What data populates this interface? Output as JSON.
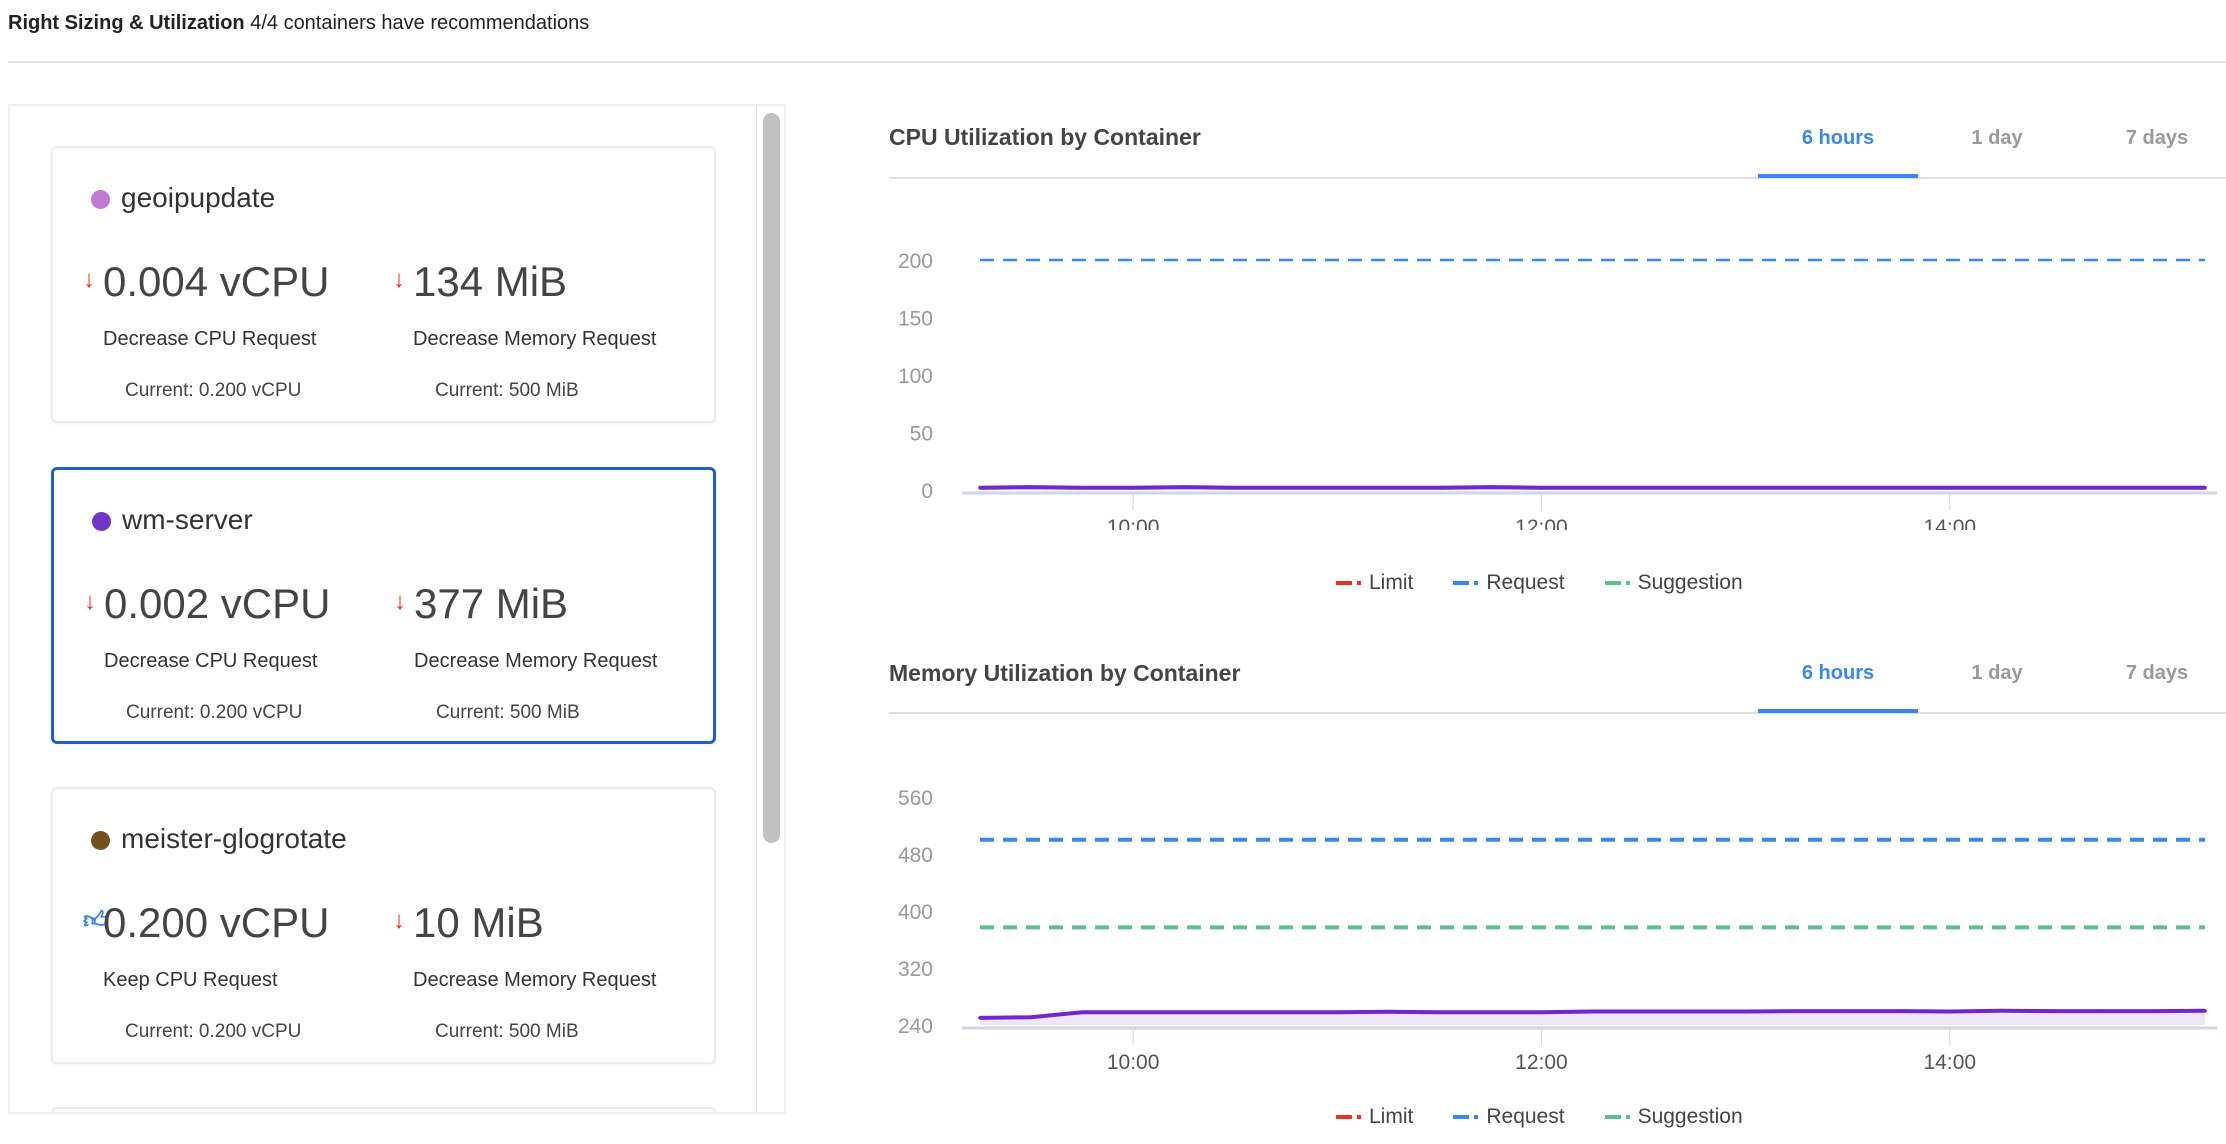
{
  "header": {
    "title": "Right Sizing & Utilization",
    "subtitle": "4/4 containers have recommendations"
  },
  "containers": [
    {
      "name": "geoipupdate",
      "color": "#c278d4",
      "cpu": {
        "icon": "arrow-down-icon",
        "value": "0.004 vCPU",
        "label": "Decrease CPU Request",
        "current": "Current: 0.200 vCPU"
      },
      "mem": {
        "icon": "arrow-down-icon",
        "value": "134 MiB",
        "label": "Decrease Memory Request",
        "current": "Current: 500 MiB"
      }
    },
    {
      "name": "wm-server",
      "color": "#7034c8",
      "selected": true,
      "cpu": {
        "icon": "arrow-down-icon",
        "value": "0.002 vCPU",
        "label": "Decrease CPU Request",
        "current": "Current: 0.200 vCPU"
      },
      "mem": {
        "icon": "arrow-down-icon",
        "value": "377 MiB",
        "label": "Decrease Memory Request",
        "current": "Current: 500 MiB"
      }
    },
    {
      "name": "meister-glogrotate",
      "color": "#74501f",
      "cpu": {
        "icon": "thumbs-up-icon",
        "value": "0.200 vCPU",
        "label": "Keep CPU Request",
        "current": "Current: 0.200 vCPU"
      },
      "mem": {
        "icon": "arrow-down-icon",
        "value": "10 MiB",
        "label": "Decrease Memory Request",
        "current": "Current: 500 MiB"
      }
    }
  ],
  "colors": {
    "accent": "#3b87f0",
    "limit": "#e8321f",
    "request": "#3b87f0",
    "suggestion": "#5cc08b",
    "usage": "#7026d0",
    "decrease": "#e8321f"
  },
  "tabs": [
    "6 hours",
    "1 day",
    "7 days"
  ],
  "active_tab": "6 hours",
  "chart_data": [
    {
      "type": "line",
      "title": "CPU Utilization by Container",
      "x": [
        "09:15",
        "09:30",
        "09:45",
        "10:00",
        "10:15",
        "10:30",
        "10:45",
        "11:00",
        "11:15",
        "11:30",
        "11:45",
        "12:00",
        "12:15",
        "12:30",
        "12:45",
        "13:00",
        "13:15",
        "13:30",
        "13:45",
        "14:00",
        "14:15",
        "14:30",
        "14:45",
        "15:00",
        "15:15"
      ],
      "xticks": [
        "10:00",
        "12:00",
        "14:00"
      ],
      "yticks": [
        0,
        50,
        100,
        150,
        200
      ],
      "ylim": [
        0,
        200
      ],
      "series": [
        {
          "name": "wm-server",
          "values": [
            2,
            2.5,
            2,
            2,
            2.5,
            2,
            2,
            2,
            2,
            2,
            2.5,
            2,
            2,
            2,
            2,
            2,
            2,
            2,
            2,
            2,
            2,
            2,
            2,
            2,
            2
          ],
          "fill": true
        },
        {
          "name": "Request",
          "constant": 200,
          "dashed": true
        }
      ],
      "legend": [
        "Limit",
        "Request",
        "Suggestion"
      ],
      "legend_position": "bottom"
    },
    {
      "type": "line",
      "title": "Memory Utilization by Container",
      "x": [
        "09:15",
        "09:30",
        "09:45",
        "10:00",
        "10:15",
        "10:30",
        "10:45",
        "11:00",
        "11:15",
        "11:30",
        "11:45",
        "12:00",
        "12:15",
        "12:30",
        "12:45",
        "13:00",
        "13:15",
        "13:30",
        "13:45",
        "14:00",
        "14:15",
        "14:30",
        "14:45",
        "15:00",
        "15:15"
      ],
      "xticks": [
        "10:00",
        "12:00",
        "14:00"
      ],
      "yticks": [
        240,
        320,
        400,
        480,
        560
      ],
      "ylim": [
        240,
        560
      ],
      "series": [
        {
          "name": "wm-server",
          "values": [
            250,
            251,
            258,
            258,
            258,
            258,
            258,
            258,
            258.5,
            258,
            258,
            258,
            259,
            259,
            259,
            259,
            259.5,
            259.5,
            259.5,
            259,
            260,
            259.5,
            259.5,
            259.5,
            260
          ],
          "fill": true
        },
        {
          "name": "Request",
          "constant": 500,
          "dashed": true
        },
        {
          "name": "Suggestion",
          "constant": 377,
          "dashed": true
        }
      ],
      "legend": [
        "Limit",
        "Request",
        "Suggestion"
      ],
      "legend_position": "bottom"
    }
  ]
}
